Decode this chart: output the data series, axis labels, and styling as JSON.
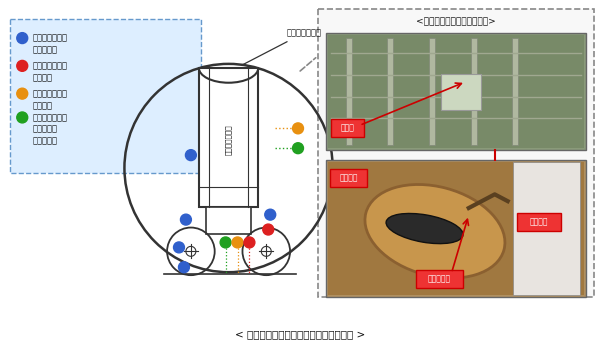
{
  "title_bottom": "< 主な計器追加設置イメージ（２号機） >",
  "right_box_title": "<設備例（栽納容器圧力計）>",
  "legend_item1_text1": "栽納容器温度計",
  "legend_item1_text2": "［１５台］",
  "legend_item2_text1": "栽納容器水位計",
  "legend_item2_text2": "［８台］",
  "legend_item3_text1": "栽納容器圧力計",
  "legend_item3_text2": "［４台］",
  "legend_item4_text1": "栽納容器酸素・",
  "legend_item4_text2": "水素濃度計",
  "legend_item4_text3": "［各１台］",
  "label_containment": "原子炉栽納容器",
  "label_rpv": "原子炉圧力容器",
  "photo_label_atsuryoku": "圧力計",
  "photo_label_kakunou": "栽納容器",
  "photo_label_keiki": "計器用配管",
  "photo_label_atsu_he": "圧力計へ",
  "color_blue": "#3060cc",
  "color_red": "#dd2020",
  "color_orange": "#e89010",
  "color_green": "#20a020",
  "color_dark": "#333333",
  "color_legend_bg": "#ddeeff",
  "color_legend_border": "#6699cc",
  "bg_color": "#ffffff"
}
